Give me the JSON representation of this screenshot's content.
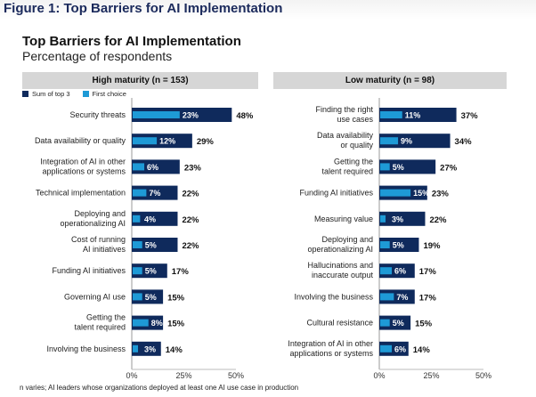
{
  "figure_title": "Figure 1: Top Barriers for AI Implementation",
  "colors": {
    "sum_of_top3": "#0f2a5c",
    "first_choice": "#1e9ad6",
    "panel_header_bg": "#d6d6d6",
    "figure_title": "#1b2a5c"
  },
  "footnote": "n varies; AI leaders whose organizations deployed at least one AI use case in production",
  "chart_data": {
    "type": "bar",
    "orientation": "horizontal",
    "title": "Top Barriers for AI Implementation",
    "subtitle": "Percentage of respondents",
    "legend": {
      "position": "top-left",
      "entries": [
        "Sum of top 3",
        "First choice"
      ]
    },
    "xlim": [
      0,
      50
    ],
    "xticks": [
      "0%",
      "25%",
      "50%"
    ],
    "grid": false,
    "panels": [
      {
        "title": "High maturity (n = 153)",
        "categories": [
          [
            "Security threats"
          ],
          [
            "Data availability or quality"
          ],
          [
            "Integration of AI in other",
            "applications or systems"
          ],
          [
            "Technical implementation"
          ],
          [
            "Deploying and",
            "operationalizing AI"
          ],
          [
            "Cost of running",
            "AI initiatives"
          ],
          [
            "Funding AI initiatives"
          ],
          [
            "Governing AI use"
          ],
          [
            "Getting the",
            "talent required"
          ],
          [
            "Involving the business"
          ]
        ],
        "series": [
          {
            "name": "Sum of top 3",
            "values": [
              48,
              29,
              23,
              22,
              22,
              22,
              17,
              15,
              15,
              14
            ]
          },
          {
            "name": "First choice",
            "values": [
              23,
              12,
              6,
              7,
              4,
              5,
              5,
              5,
              8,
              3
            ]
          }
        ]
      },
      {
        "title": "Low maturity (n = 98)",
        "categories": [
          [
            "Finding the right",
            "use cases"
          ],
          [
            "Data availability",
            "or quality"
          ],
          [
            "Getting the",
            "talent required"
          ],
          [
            "Funding AI initiatives"
          ],
          [
            "Measuring value"
          ],
          [
            "Deploying and",
            "operationalizing AI"
          ],
          [
            "Hallucinations and",
            "inaccurate output"
          ],
          [
            "Involving the business"
          ],
          [
            "Cultural resistance"
          ],
          [
            "Integration of AI in other",
            "applications or systems"
          ]
        ],
        "series": [
          {
            "name": "Sum of top 3",
            "values": [
              37,
              34,
              27,
              23,
              22,
              19,
              17,
              17,
              15,
              14
            ]
          },
          {
            "name": "First choice",
            "values": [
              11,
              9,
              5,
              15,
              3,
              5,
              6,
              7,
              5,
              6
            ]
          }
        ]
      }
    ]
  }
}
